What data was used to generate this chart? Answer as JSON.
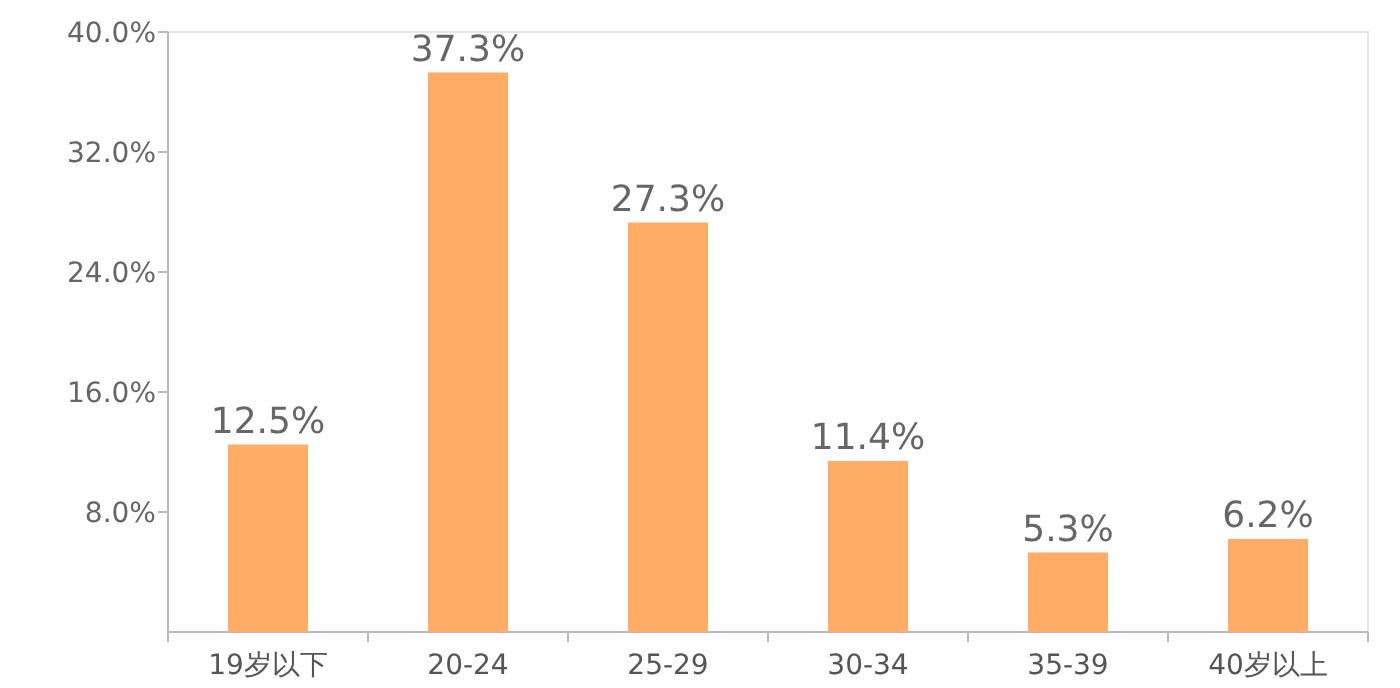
{
  "chart_data": {
    "type": "bar",
    "categories": [
      "19岁以下",
      "20-24",
      "25-29",
      "30-34",
      "35-39",
      "40岁以上"
    ],
    "values": [
      12.5,
      37.3,
      27.3,
      11.4,
      5.3,
      6.2
    ],
    "value_labels": [
      "12.5%",
      "37.3%",
      "27.3%",
      "11.4%",
      "5.3%",
      "6.2%"
    ],
    "color": "#ffad66",
    "ylim": [
      0,
      40
    ],
    "yticks": [
      {
        "value": 8,
        "label": "8.0%"
      },
      {
        "value": 16,
        "label": "16.0%"
      },
      {
        "value": 24,
        "label": "24.0%"
      },
      {
        "value": 32,
        "label": "32.0%"
      },
      {
        "value": 40,
        "label": "40.0%"
      }
    ]
  }
}
